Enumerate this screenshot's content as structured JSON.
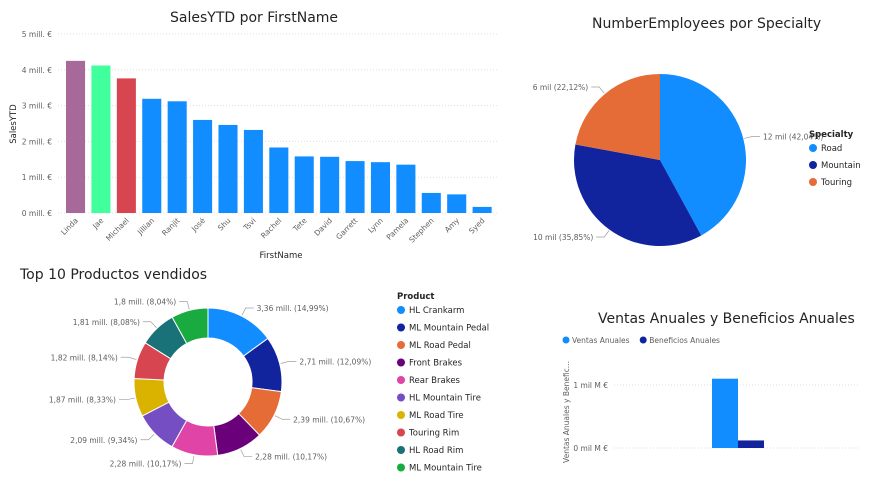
{
  "chart_data": [
    {
      "id": "sales",
      "type": "bar",
      "title": "SalesYTD por FirstName",
      "xlabel": "FirstName",
      "ylabel": "SalesYTD",
      "ylim": [
        0,
        5
      ],
      "yticks": [
        "0 mill. €",
        "1 mill. €",
        "2 mill. €",
        "3 mill. €",
        "4 mill. €",
        "5 mill. €"
      ],
      "categories": [
        "Linda",
        "Jae",
        "Michael",
        "Jillian",
        "Ranjit",
        "José",
        "Shu",
        "Tsvi",
        "Rachel",
        "Tete",
        "David",
        "Garrett",
        "Lynn",
        "Pamela",
        "Stephen",
        "Amy",
        "Syed"
      ],
      "values": [
        4.25,
        4.12,
        3.76,
        3.19,
        3.12,
        2.6,
        2.46,
        2.32,
        1.83,
        1.58,
        1.57,
        1.45,
        1.42,
        1.35,
        0.56,
        0.52,
        0.17
      ],
      "colors": [
        "#a66999",
        "#41ff9c",
        "#d64550",
        "#118dff",
        "#118dff",
        "#118dff",
        "#118dff",
        "#118dff",
        "#118dff",
        "#118dff",
        "#118dff",
        "#118dff",
        "#118dff",
        "#118dff",
        "#118dff",
        "#118dff",
        "#118dff"
      ],
      "grid": true
    },
    {
      "id": "employees",
      "type": "pie",
      "title": "NumberEmployees por Specialty",
      "legend_title": "Specialty",
      "legend_position": "right",
      "slices": [
        {
          "name": "Road",
          "value": 42.04,
          "label": "12 mil (42,04%)",
          "color": "#118dff"
        },
        {
          "name": "Mountain",
          "value": 35.85,
          "label": "10 mil (35,85%)",
          "color": "#12239e"
        },
        {
          "name": "Touring",
          "value": 22.12,
          "label": "6 mil (22,12%)",
          "color": "#e66c37"
        }
      ]
    },
    {
      "id": "products",
      "type": "pie",
      "subtype": "donut",
      "title": "Top 10 Productos vendidos",
      "legend_title": "Product",
      "legend_position": "right",
      "slices": [
        {
          "name": "HL Crankarm",
          "value": 14.99,
          "label": "3,36 mill. (14,99%)",
          "color": "#118dff"
        },
        {
          "name": "ML Mountain Pedal",
          "value": 12.09,
          "label": "2,71 mill. (12,09%)",
          "color": "#12239e"
        },
        {
          "name": "ML Road Pedal",
          "value": 10.67,
          "label": "2,39 mill. (10,67%)",
          "color": "#e66c37"
        },
        {
          "name": "Front Brakes",
          "value": 10.17,
          "label": "2,28 mill. (10,17%)",
          "color": "#6b007b"
        },
        {
          "name": "Rear Brakes",
          "value": 10.17,
          "label": "2,28 mill. (10,17%)",
          "color": "#e044a7"
        },
        {
          "name": "HL Mountain Tire",
          "value": 9.34,
          "label": "2,09 mill. (9,34%)",
          "color": "#744ec2"
        },
        {
          "name": "ML Road Tire",
          "value": 8.33,
          "label": "1,87 mill. (8,33%)",
          "color": "#d9b300"
        },
        {
          "name": "Touring Rim",
          "value": 8.14,
          "label": "1,82 mill. (8,14%)",
          "color": "#d64550"
        },
        {
          "name": "HL Road Rim",
          "value": 8.08,
          "label": "1,81 mill. (8,08%)",
          "color": "#197278"
        },
        {
          "name": "ML Mountain Tire",
          "value": 8.04,
          "label": "1,8 mill. (8,04%)",
          "color": "#1aab40"
        }
      ]
    },
    {
      "id": "annual",
      "type": "bar",
      "title": "Ventas Anuales y Beneficios Anuales",
      "ylabel": "Ventas Anuales y Benefic...",
      "ylim": [
        0,
        1.45
      ],
      "yticks": [
        "0 mil M €",
        "1 mil M €"
      ],
      "ytick_values": [
        0,
        1
      ],
      "legend_position": "top-left",
      "series": [
        {
          "name": "Ventas Anuales",
          "values": [
            1.1
          ],
          "color": "#118dff"
        },
        {
          "name": "Beneficios Anuales",
          "values": [
            0.12
          ],
          "color": "#12239e"
        }
      ]
    }
  ]
}
